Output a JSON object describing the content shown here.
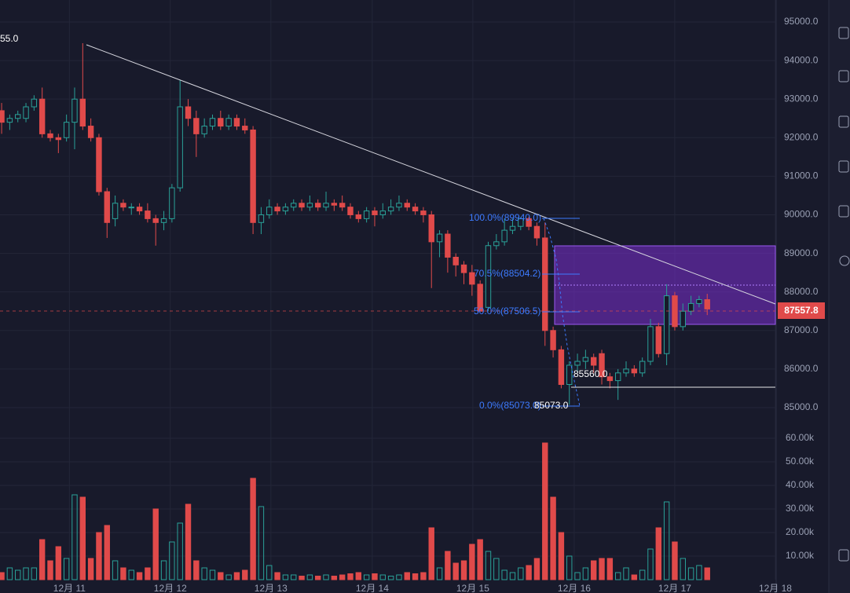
{
  "chart_data": {
    "type": "candlestick",
    "open": [
      92700,
      92400,
      92500,
      92500,
      92800,
      93000,
      92100,
      92000,
      92000,
      92400,
      93000,
      92300,
      92000,
      90600,
      89900,
      90300,
      90200,
      90200,
      90100,
      89900,
      89800,
      89900,
      90700,
      92800,
      92500,
      92100,
      92300,
      92500,
      92300,
      92500,
      92300,
      92200,
      89800,
      90000,
      90200,
      90100,
      90200,
      90300,
      90200,
      90300,
      90200,
      90300,
      90300,
      90200,
      90000,
      89900,
      90100,
      90000,
      90100,
      90200,
      90300,
      90200,
      90100,
      90000,
      89300,
      89500,
      88900,
      88700,
      88500,
      88200,
      87600,
      89200,
      89300,
      89600,
      89700,
      89900,
      89700,
      89400,
      87000,
      86500,
      85600,
      86100,
      86200,
      86300,
      86400,
      85800,
      85700,
      85900,
      86000,
      85900,
      86200,
      87100,
      86400,
      87900,
      87100,
      87500,
      87700,
      87800
    ],
    "high": [
      92900,
      92600,
      92700,
      92900,
      93100,
      93300,
      92200,
      92100,
      92600,
      93300,
      94450,
      92500,
      92100,
      90700,
      90500,
      90400,
      90300,
      90300,
      90300,
      90000,
      90100,
      90800,
      93500,
      93000,
      92700,
      92500,
      92600,
      92700,
      92600,
      92600,
      92500,
      92300,
      90200,
      90400,
      90300,
      90300,
      90400,
      90400,
      90500,
      90400,
      90600,
      90400,
      90500,
      90300,
      90100,
      90200,
      90200,
      90300,
      90400,
      90500,
      90400,
      90300,
      90200,
      90100,
      89600,
      89600,
      89000,
      88800,
      88700,
      88300,
      89300,
      89500,
      89900,
      89900,
      89940,
      89950,
      89800,
      89800,
      87100,
      86600,
      86200,
      86400,
      86500,
      86400,
      86500,
      85900,
      86000,
      86200,
      86100,
      86300,
      87300,
      87200,
      88200,
      88000,
      87700,
      87900,
      87900,
      87950
    ],
    "low": [
      92100,
      92200,
      92400,
      92400,
      92700,
      92000,
      91900,
      91600,
      91900,
      91700,
      92200,
      91900,
      90500,
      89400,
      89700,
      90100,
      90000,
      90000,
      89800,
      89200,
      89600,
      89800,
      90600,
      92300,
      91500,
      92000,
      92200,
      92200,
      92200,
      92200,
      92100,
      89500,
      89500,
      89900,
      90000,
      90000,
      90100,
      90100,
      90100,
      90100,
      90100,
      90100,
      90100,
      89900,
      89800,
      89800,
      89700,
      89900,
      90000,
      90100,
      90100,
      90000,
      89800,
      88100,
      88900,
      88500,
      88400,
      88200,
      87900,
      87500,
      87500,
      89100,
      89200,
      89500,
      89600,
      89600,
      89200,
      86600,
      86300,
      85500,
      85073,
      85900,
      86000,
      85900,
      85600,
      85500,
      85200,
      85800,
      85800,
      85800,
      86100,
      86300,
      86100,
      87000,
      87000,
      87400,
      87600,
      87400
    ],
    "close": [
      92400,
      92500,
      92600,
      92800,
      93000,
      92100,
      92000,
      91950,
      92400,
      93000,
      92300,
      92000,
      90600,
      89800,
      90300,
      90200,
      90200,
      90100,
      89900,
      89800,
      89900,
      90700,
      92800,
      92500,
      92100,
      92300,
      92500,
      92300,
      92500,
      92300,
      92200,
      89800,
      90000,
      90200,
      90100,
      90200,
      90300,
      90200,
      90300,
      90200,
      90300,
      90250,
      90200,
      90000,
      89900,
      90100,
      90000,
      90100,
      90200,
      90300,
      90200,
      90100,
      90000,
      89300,
      89500,
      88900,
      88700,
      88500,
      88200,
      87500,
      89200,
      89300,
      89600,
      89700,
      89900,
      89700,
      89400,
      87000,
      86500,
      85600,
      86100,
      86200,
      86300,
      86100,
      85800,
      85700,
      85900,
      86000,
      85900,
      86200,
      87100,
      86400,
      87900,
      87100,
      87500,
      87700,
      87800,
      87557.8
    ],
    "volume": [
      3000,
      5000,
      4000,
      5000,
      5000,
      17000,
      8000,
      14000,
      9000,
      36000,
      35000,
      9000,
      20000,
      23000,
      8000,
      5000,
      4000,
      3000,
      5000,
      30000,
      8000,
      16000,
      24000,
      32000,
      8000,
      5000,
      4000,
      3000,
      2000,
      3000,
      4000,
      43000,
      31000,
      6000,
      3000,
      2000,
      2000,
      1500,
      2000,
      1500,
      2000,
      1500,
      2000,
      2500,
      3000,
      2000,
      2500,
      2000,
      1500,
      2000,
      3000,
      2500,
      3000,
      22000,
      5000,
      12000,
      7000,
      8000,
      15000,
      17000,
      12000,
      9000,
      4000,
      3000,
      5000,
      6000,
      9000,
      58000,
      35000,
      20000,
      10000,
      3000,
      5000,
      8000,
      9000,
      9000,
      3000,
      5000,
      2000,
      4000,
      13000,
      22000,
      33000,
      16000,
      9000,
      5000,
      6000,
      5000
    ],
    "up_color": "#2aa198",
    "down_color": "#e04a4a",
    "xlim": [
      -0.2,
      95.5
    ],
    "xticks": [
      {
        "value": 8.36,
        "label": "12月 11"
      },
      {
        "value": 20.8,
        "label": "12月 12"
      },
      {
        "value": 33.2,
        "label": "12月 13"
      },
      {
        "value": 45.7,
        "label": "12月 14"
      },
      {
        "value": 58.1,
        "label": "12月 15"
      },
      {
        "value": 70.6,
        "label": "12月 16"
      },
      {
        "value": 83.0,
        "label": "12月 17"
      },
      {
        "value": 95.4,
        "label": "12月 18"
      }
    ],
    "ylim": [
      84470,
      95570
    ],
    "yticks": [
      {
        "value": 85000,
        "label": "85000.0"
      },
      {
        "value": 86000,
        "label": "86000.0"
      },
      {
        "value": 87000,
        "label": "87000.0"
      },
      {
        "value": 88000,
        "label": "88000.0"
      },
      {
        "value": 89000,
        "label": "89000.0"
      },
      {
        "value": 90000,
        "label": "90000.0"
      },
      {
        "value": 91000,
        "label": "91000.0"
      },
      {
        "value": 92000,
        "label": "92000.0"
      },
      {
        "value": 93000,
        "label": "93000.0"
      },
      {
        "value": 94000,
        "label": "94000.0"
      },
      {
        "value": 95000,
        "label": "95000.0"
      }
    ],
    "y2lim": [
      0,
      62000
    ],
    "y2ticks": [
      {
        "value": 10000,
        "label": "10.00k"
      },
      {
        "value": 20000,
        "label": "20.00k"
      },
      {
        "value": 30000,
        "label": "30.00k"
      },
      {
        "value": 40000,
        "label": "40.00k"
      },
      {
        "value": 50000,
        "label": "50.00k"
      },
      {
        "value": 60000,
        "label": "60.00k"
      }
    ],
    "grid": true,
    "annotations": [
      "55.0",
      "100.0%(89940.0)",
      "70.5%(88504.2)",
      "50.0%(87506.5)",
      "0.0%(85073.0)",
      "85560.0",
      "85073.0"
    ]
  }
}
